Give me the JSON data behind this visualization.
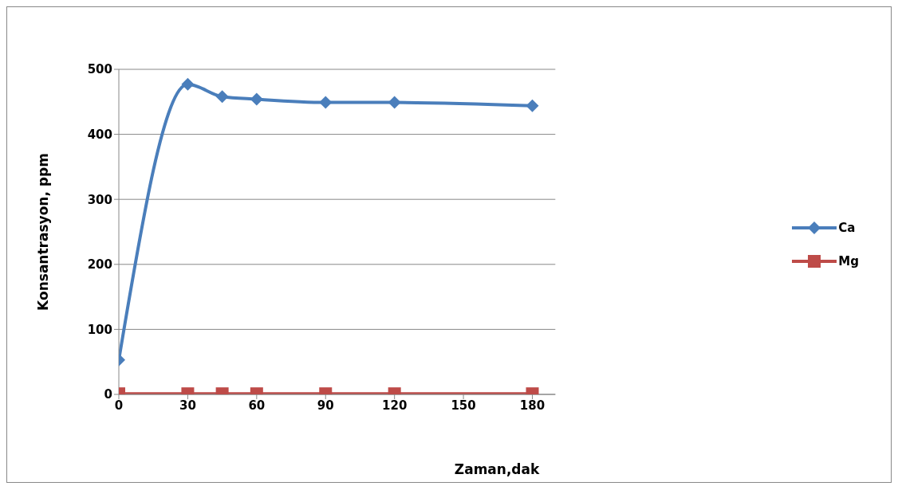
{
  "chart_data": {
    "type": "line",
    "xlabel": "Zaman,dak",
    "ylabel": "Konsantrasyon, ppm",
    "x": [
      0,
      30,
      45,
      60,
      90,
      120,
      180
    ],
    "series": [
      {
        "name": "Ca",
        "color": "#4a7ebb",
        "marker": "diamond",
        "values": [
          53,
          477,
          458,
          454,
          449,
          449,
          444
        ]
      },
      {
        "name": "Mg",
        "color": "#be4b48",
        "marker": "square",
        "values": [
          1,
          1,
          1,
          1,
          1,
          1,
          1
        ]
      }
    ],
    "xlim": [
      0,
      190
    ],
    "xticks": [
      0,
      30,
      60,
      90,
      120,
      150,
      180
    ],
    "ylim": [
      0,
      500
    ],
    "yticks": [
      0,
      100,
      200,
      300,
      400,
      500
    ],
    "grid": "y",
    "legend": "right"
  }
}
